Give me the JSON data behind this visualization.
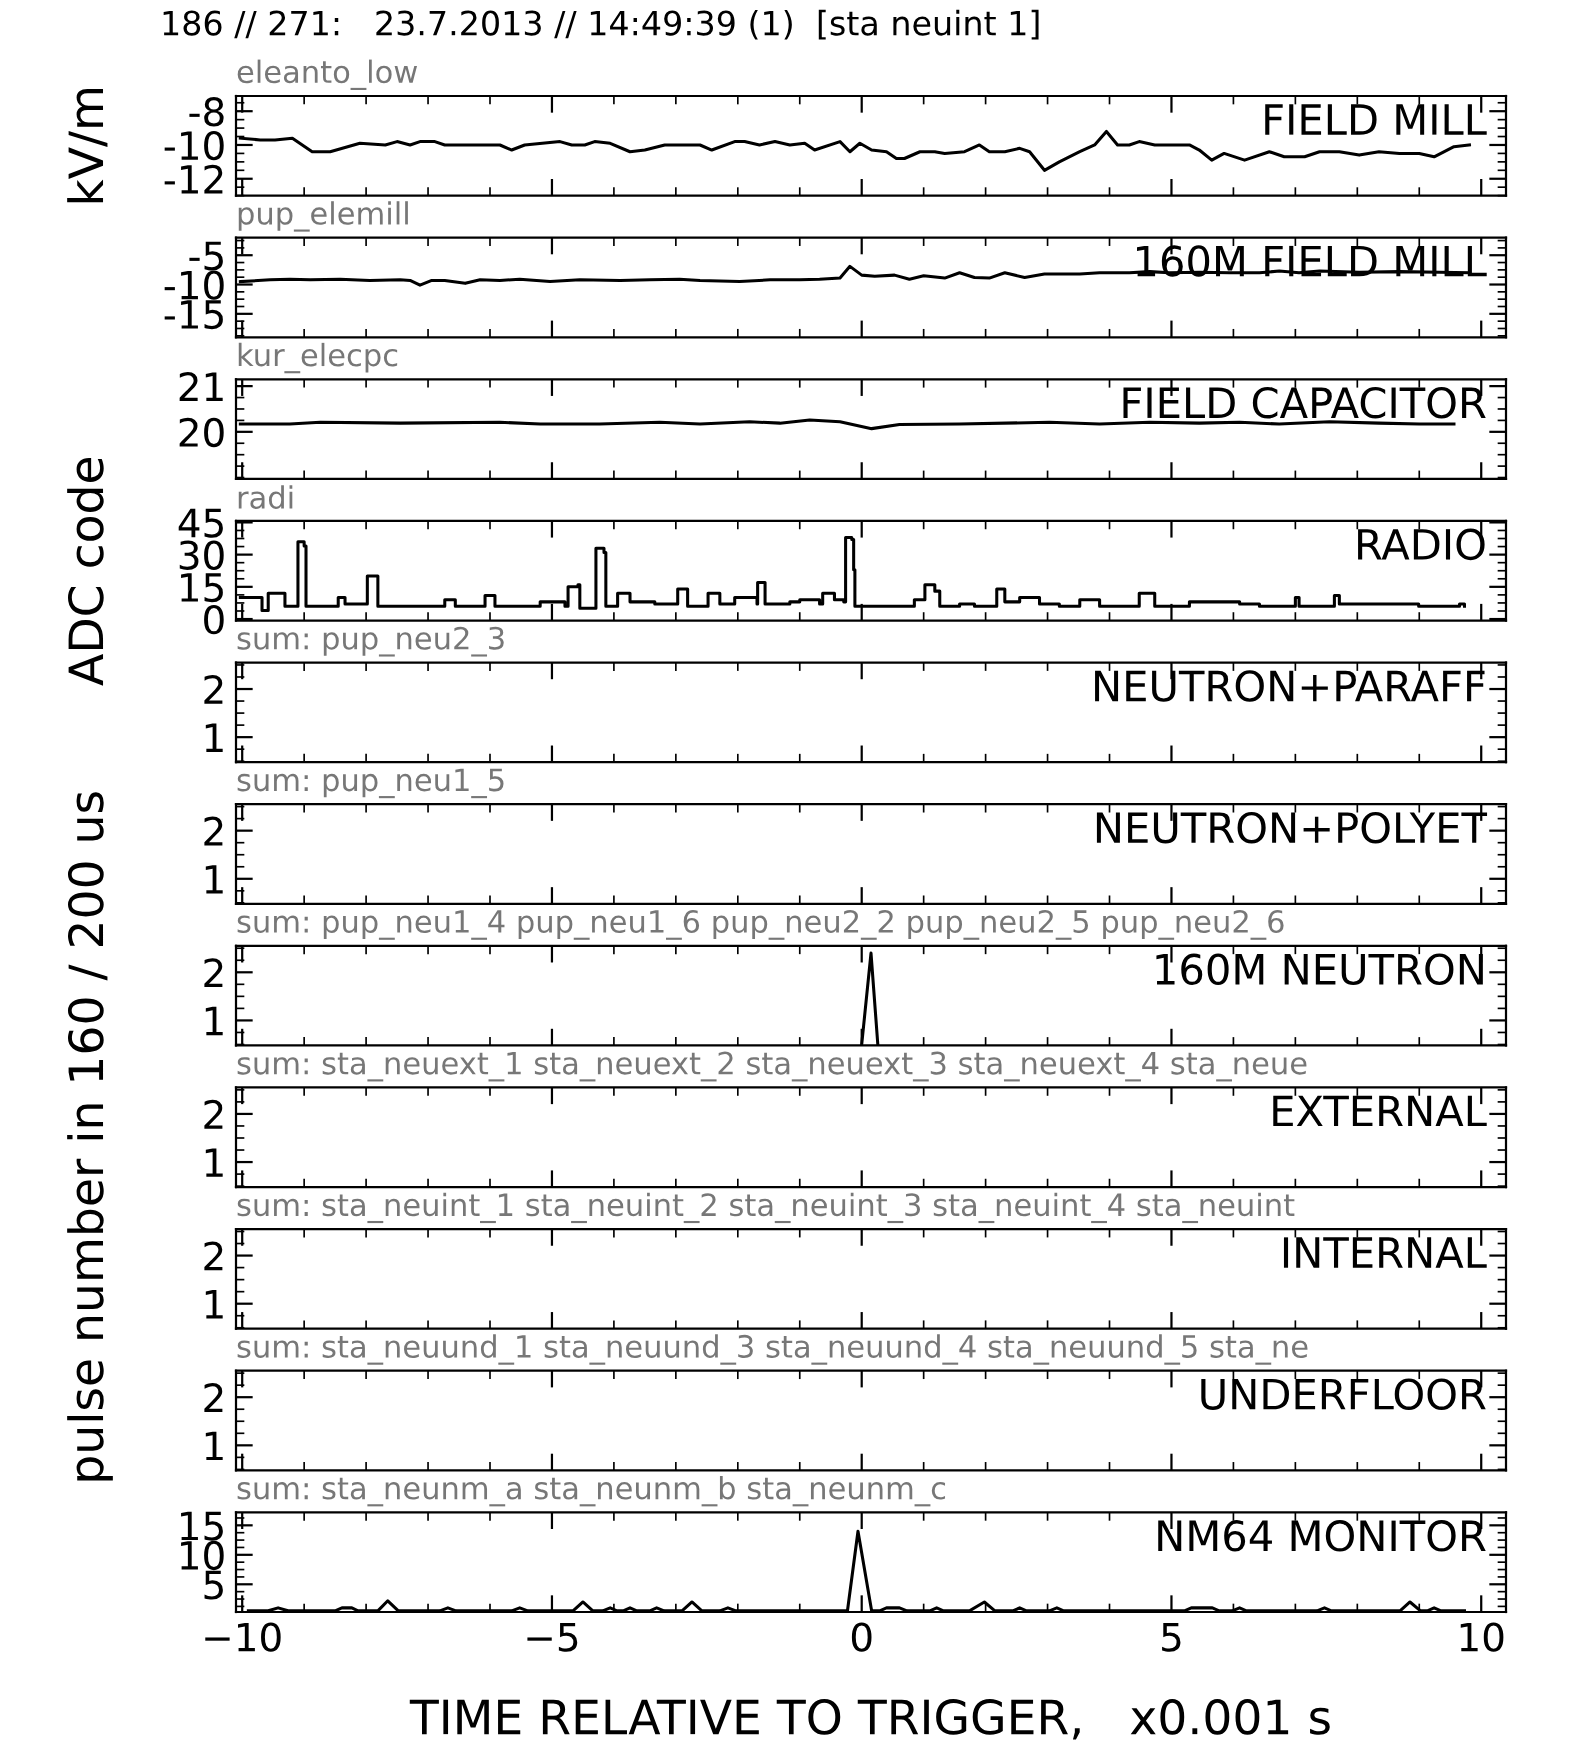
{
  "chart_data": [
    {
      "type": "line",
      "title": "FIELD MILL",
      "subtitle": "eleanto_low",
      "ylabel": "kV/m",
      "annotations": [
        "186 // 271:   23.7.2013 // 14:49:39 (1)  [sta neuint 1]"
      ],
      "xlim": [
        -10.1,
        10.4
      ],
      "ylim": [
        -13.0,
        -7.1
      ],
      "yticks": [
        -12,
        -10,
        -8
      ],
      "tick_labels": "y",
      "series": [
        {
          "color": "#000000",
          "x": [
            -10.03,
            -9.71,
            -9.47,
            -9.19,
            -8.87,
            -8.58,
            -8.1,
            -7.69,
            -7.5,
            -7.29,
            -7.13,
            -6.89,
            -6.73,
            -5.84,
            -5.65,
            -5.44,
            -4.87,
            -4.68,
            -4.47,
            -4.31,
            -4.06,
            -3.74,
            -3.5,
            -3.18,
            -2.61,
            -2.42,
            -2.05,
            -1.89,
            -1.65,
            -1.4,
            -1.16,
            -0.92,
            -0.76,
            -0.35,
            -0.19,
            -0.03,
            0.16,
            0.4,
            0.56,
            0.69,
            0.94,
            1.18,
            1.34,
            1.66,
            1.9,
            2.06,
            2.31,
            2.55,
            2.71,
            2.95,
            3.19,
            3.52,
            3.76,
            3.95,
            4.13,
            4.32,
            4.48,
            4.73,
            5.29,
            5.45,
            5.65,
            5.85,
            6.18,
            6.58,
            6.82,
            7.15,
            7.39,
            7.71,
            8.03,
            8.35,
            8.68,
            9.0,
            9.24,
            9.56,
            9.81
          ],
          "values": [
            -9.6,
            -9.7,
            -9.7,
            -9.6,
            -10.4,
            -10.4,
            -9.9,
            -10.0,
            -9.8,
            -10.0,
            -9.8,
            -9.8,
            -10.0,
            -10.0,
            -10.3,
            -10.0,
            -9.8,
            -10.0,
            -10.0,
            -9.8,
            -9.9,
            -10.4,
            -10.3,
            -10.0,
            -10.0,
            -10.3,
            -9.8,
            -9.8,
            -10.0,
            -9.8,
            -10.0,
            -9.9,
            -10.3,
            -9.8,
            -10.4,
            -9.9,
            -10.3,
            -10.4,
            -10.8,
            -10.8,
            -10.4,
            -10.4,
            -10.5,
            -10.4,
            -10.0,
            -10.4,
            -10.4,
            -10.2,
            -10.4,
            -11.5,
            -11.0,
            -10.4,
            -10.0,
            -9.2,
            -10.0,
            -10.0,
            -9.8,
            -10.0,
            -10.0,
            -10.3,
            -10.9,
            -10.5,
            -10.9,
            -10.4,
            -10.7,
            -10.7,
            -10.4,
            -10.4,
            -10.6,
            -10.4,
            -10.5,
            -10.5,
            -10.7,
            -10.1,
            -10.0
          ]
        }
      ]
    },
    {
      "type": "line",
      "title": "160M FIELD MILL",
      "subtitle": "pup_elemill",
      "xlim": [
        -10.1,
        10.4
      ],
      "ylim": [
        -19,
        -2
      ],
      "yticks": [
        -15,
        -10,
        -5
      ],
      "tick_labels": "y",
      "series": [
        {
          "color": "#000000",
          "x": [
            -10.03,
            -9.55,
            -9.23,
            -8.9,
            -8.42,
            -7.94,
            -7.45,
            -7.29,
            -7.13,
            -6.94,
            -6.73,
            -6.4,
            -6.16,
            -5.84,
            -5.52,
            -5.03,
            -4.55,
            -3.9,
            -3.42,
            -2.94,
            -2.61,
            -1.97,
            -1.48,
            -1.0,
            -0.68,
            -0.35,
            -0.19,
            0.0,
            0.21,
            0.53,
            0.77,
            1.0,
            1.34,
            1.58,
            1.82,
            2.06,
            2.31,
            2.63,
            2.95,
            3.52,
            3.84,
            4.32,
            4.65,
            4.97,
            5.45,
            5.94,
            6.42,
            6.74,
            7.06,
            7.39,
            8.03,
            8.68,
            9.32,
            9.81
          ],
          "values": [
            -9.5,
            -9.2,
            -9.1,
            -9.2,
            -9.1,
            -9.3,
            -9.2,
            -9.3,
            -10.1,
            -9.3,
            -9.3,
            -9.8,
            -9.2,
            -9.3,
            -9.1,
            -9.5,
            -9.2,
            -9.3,
            -9.2,
            -9.1,
            -9.3,
            -9.5,
            -9.2,
            -9.2,
            -9.1,
            -8.9,
            -6.9,
            -8.4,
            -8.6,
            -8.4,
            -9.1,
            -8.5,
            -8.9,
            -8.0,
            -8.8,
            -8.9,
            -8.0,
            -8.8,
            -8.2,
            -8.2,
            -8.0,
            -8.0,
            -7.8,
            -8.0,
            -7.9,
            -8.0,
            -8.0,
            -7.7,
            -8.0,
            -7.7,
            -7.9,
            -7.8,
            -7.9,
            -8.0
          ]
        }
      ]
    },
    {
      "type": "line",
      "title": "FIELD CAPACITOR",
      "subtitle": "kur_elecpc",
      "ylabel": "ADC code",
      "xlim": [
        -10.1,
        10.4
      ],
      "ylim": [
        18.97,
        21.15
      ],
      "yticks": [
        20,
        21
      ],
      "tick_labels": "y",
      "series": [
        {
          "color": "#000000",
          "x": [
            -10.03,
            -9.23,
            -8.74,
            -7.45,
            -5.84,
            -5.19,
            -4.23,
            -3.26,
            -2.61,
            -1.81,
            -1.32,
            -0.84,
            -0.35,
            0.16,
            0.61,
            1.58,
            3.03,
            3.84,
            4.65,
            5.45,
            6.1,
            6.74,
            7.55,
            8.35,
            9.0,
            9.56
          ],
          "values": [
            20.17,
            20.17,
            20.21,
            20.19,
            20.21,
            20.17,
            20.17,
            20.21,
            20.17,
            20.22,
            20.19,
            20.26,
            20.22,
            20.07,
            20.16,
            20.17,
            20.21,
            20.17,
            20.21,
            20.19,
            20.21,
            20.17,
            20.22,
            20.19,
            20.17,
            20.17
          ]
        }
      ]
    },
    {
      "type": "step",
      "title": "RADIO",
      "subtitle": "radi",
      "xlim": [
        -10.1,
        10.4
      ],
      "ylim": [
        -0.7,
        45.7
      ],
      "yticks": [
        0,
        15,
        30,
        45
      ],
      "tick_labels": "y",
      "series": [
        {
          "color": "#000000",
          "x": [
            -10.03,
            -9.79,
            -9.68,
            -9.58,
            -9.42,
            -9.31,
            -9.13,
            -9.1,
            -9.0,
            -8.97,
            -8.58,
            -8.45,
            -8.34,
            -8.02,
            -7.98,
            -7.84,
            -7.81,
            -6.81,
            -6.73,
            -6.56,
            -6.16,
            -6.08,
            -5.92,
            -5.35,
            -5.19,
            -4.79,
            -4.74,
            -4.58,
            -4.55,
            -4.32,
            -4.29,
            -4.16,
            -4.13,
            -3.98,
            -3.94,
            -3.74,
            -3.34,
            -2.98,
            -2.97,
            -2.81,
            -2.53,
            -2.48,
            -2.29,
            -2.05,
            -1.69,
            -1.68,
            -1.56,
            -1.16,
            -1.0,
            -0.68,
            -0.63,
            -0.44,
            -0.29,
            -0.26,
            -0.16,
            -0.13,
            -0.11,
            0.61,
            0.85,
            1.02,
            1.18,
            1.26,
            1.58,
            1.82,
            2.15,
            2.18,
            2.31,
            2.55,
            2.87,
            3.19,
            3.52,
            3.84,
            4.48,
            4.73,
            5.29,
            6.1,
            6.42,
            7.0,
            7.06,
            7.63,
            7.71,
            8.27,
            8.99,
            9.65,
            9.73
          ],
          "values": [
            10,
            10,
            4,
            12,
            12,
            6,
            6,
            36,
            34,
            6,
            6,
            10,
            7,
            7,
            20,
            20,
            6,
            6,
            9,
            6,
            6,
            11,
            6,
            6,
            8,
            6,
            15,
            16,
            5,
            5,
            33,
            31,
            6,
            6,
            12,
            8,
            7,
            7,
            14,
            6,
            6,
            12,
            7,
            10,
            7,
            17,
            7,
            8,
            9,
            7,
            12,
            9,
            8,
            38,
            37,
            23,
            6,
            6,
            9,
            16,
            13,
            6,
            7,
            6,
            6,
            14,
            8,
            10,
            7,
            6,
            9,
            6,
            12,
            6,
            8,
            7,
            6,
            10,
            6,
            11,
            7,
            7,
            6,
            7,
            6
          ]
        }
      ]
    },
    {
      "type": "line",
      "title": "NEUTRON+PARAFF",
      "subtitle": "sum: pup_neu2_3",
      "xlim": [
        -10.1,
        10.4
      ],
      "ylim": [
        0.48,
        2.55
      ],
      "yticks": [
        1,
        2
      ],
      "tick_labels": "y"
    },
    {
      "type": "line",
      "title": "NEUTRON+POLYET",
      "subtitle": "sum: pup_neu1_5",
      "ylabel": "pulse number in 160 / 200 us",
      "xlim": [
        -10.1,
        10.4
      ],
      "ylim": [
        0.48,
        2.55
      ],
      "yticks": [
        1,
        2
      ],
      "tick_labels": "y"
    },
    {
      "type": "line",
      "title": "160M NEUTRON",
      "subtitle": "sum: pup_neu1_4 pup_neu1_6 pup_neu2_2 pup_neu2_5 pup_neu2_6",
      "xlim": [
        -10.1,
        10.4
      ],
      "ylim": [
        0.48,
        2.55
      ],
      "yticks": [
        1,
        2
      ],
      "tick_labels": "y",
      "series": [
        {
          "color": "#000000",
          "x": [
            0.0,
            0.15,
            0.26
          ],
          "values": [
            0.5,
            2.4,
            0.5
          ]
        }
      ]
    },
    {
      "type": "line",
      "title": "EXTERNAL",
      "subtitle": "sum: sta_neuext_1 sta_neuext_2 sta_neuext_3 sta_neuext_4 sta_neue",
      "xlim": [
        -10.1,
        10.4
      ],
      "ylim": [
        0.48,
        2.55
      ],
      "yticks": [
        1,
        2
      ],
      "tick_labels": "y"
    },
    {
      "type": "line",
      "title": "INTERNAL",
      "subtitle": "sum: sta_neuint_1 sta_neuint_2 sta_neuint_3 sta_neuint_4 sta_neuint",
      "xlim": [
        -10.1,
        10.4
      ],
      "ylim": [
        0.48,
        2.55
      ],
      "yticks": [
        1,
        2
      ],
      "tick_labels": "y"
    },
    {
      "type": "line",
      "title": "UNDERFLOOR",
      "subtitle": "sum: sta_neuund_1 sta_neuund_3 sta_neuund_4 sta_neuund_5 sta_ne",
      "xlim": [
        -10.1,
        10.4
      ],
      "ylim": [
        0.48,
        2.55
      ],
      "yticks": [
        1,
        2
      ],
      "tick_labels": "y"
    },
    {
      "type": "line",
      "title": "NM64 MONITOR",
      "subtitle": "sum: sta_neunm_a sta_neunm_b sta_neunm_c",
      "xlabel": "TIME RELATIVE TO TRIGGER,   x0.001 s",
      "xlim": [
        -10.1,
        10.4
      ],
      "ylim": [
        0.3,
        17.2
      ],
      "yticks": [
        5,
        10,
        15
      ],
      "xticks": [
        {
          "value": -10,
          "label": "−10"
        },
        {
          "value": -5,
          "label": "−5"
        },
        0,
        5,
        10
      ],
      "series": [
        {
          "color": "#000000",
          "x": [
            -9.9,
            -9.58,
            -9.42,
            -9.26,
            -8.5,
            -8.39,
            -8.23,
            -8.13,
            -7.81,
            -7.65,
            -7.48,
            -6.81,
            -6.68,
            -6.55,
            -5.65,
            -5.52,
            -5.39,
            -4.66,
            -4.5,
            -4.34,
            -4.18,
            -4.06,
            -3.95,
            -3.85,
            -3.74,
            -3.63,
            -3.42,
            -3.31,
            -3.19,
            -2.9,
            -2.74,
            -2.58,
            -2.29,
            -2.16,
            -2.03,
            -0.23,
            -0.06,
            0.16,
            0.29,
            0.4,
            0.61,
            0.73,
            1.1,
            1.21,
            1.32,
            1.74,
            1.98,
            2.15,
            2.44,
            2.55,
            2.66,
            3.03,
            3.15,
            3.26,
            5.21,
            5.32,
            5.66,
            5.77,
            5.98,
            6.1,
            6.21,
            7.35,
            7.47,
            7.58,
            8.69,
            8.85,
            9.02,
            9.13,
            9.24,
            9.35,
            9.73
          ],
          "values": [
            0.5,
            0.5,
            1.0,
            0.5,
            0.5,
            1.0,
            1.0,
            0.5,
            0.5,
            2.2,
            0.5,
            0.5,
            1.0,
            0.5,
            0.5,
            1.0,
            0.5,
            0.5,
            2.0,
            0.5,
            0.5,
            1.0,
            0.5,
            0.5,
            1.0,
            0.5,
            0.5,
            1.0,
            0.5,
            0.5,
            2.0,
            0.5,
            0.5,
            1.0,
            0.5,
            0.5,
            14,
            0.5,
            0.5,
            1.0,
            1.0,
            0.5,
            0.5,
            1.0,
            0.5,
            0.5,
            2.0,
            0.5,
            0.5,
            1.0,
            0.5,
            0.5,
            1.0,
            0.5,
            0.5,
            1.0,
            1.0,
            0.5,
            0.5,
            1.0,
            0.5,
            0.5,
            1.0,
            0.5,
            0.5,
            2.0,
            0.5,
            0.5,
            1.0,
            0.5,
            0.5
          ]
        }
      ]
    }
  ]
}
